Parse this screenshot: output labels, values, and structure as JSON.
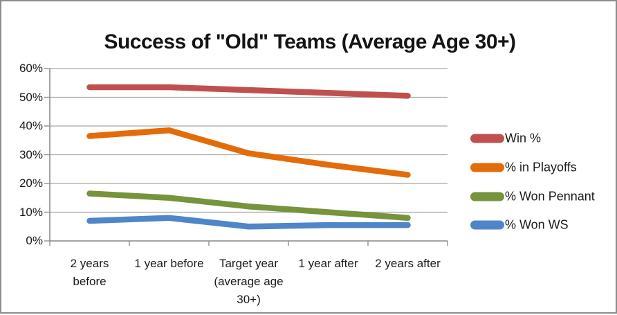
{
  "window": {
    "background_color": "#FFFFFF",
    "border_color": "#8C8C8C"
  },
  "chart_data": {
    "type": "line",
    "title": "Success of \"Old\" Teams (Average Age 30+)",
    "categories": [
      "2 years before",
      "1 year before",
      "Target year (average age 30+)",
      "1 year after",
      "2 years after"
    ],
    "category_label_lines": [
      [
        "2 years",
        "before"
      ],
      [
        "1 year before"
      ],
      [
        "Target year",
        "(average age",
        "30+)"
      ],
      [
        "1 year after"
      ],
      [
        "2 years after"
      ]
    ],
    "series": [
      {
        "name": "Win %",
        "color": "#C0504D",
        "values": [
          53.5,
          53.5,
          52.5,
          51.5,
          50.5
        ]
      },
      {
        "name": "% in Playoffs",
        "color": "#E36C09",
        "values": [
          36.5,
          38.5,
          30.5,
          26.5,
          23
        ]
      },
      {
        "name": "% Won Pennant",
        "color": "#77933C",
        "values": [
          16.5,
          15,
          12,
          10,
          8
        ]
      },
      {
        "name": "% Won WS",
        "color": "#4F86C8",
        "values": [
          7,
          8,
          5,
          5.5,
          5.5
        ]
      }
    ],
    "ylim": [
      0,
      60
    ],
    "ytick_step": 10,
    "ytick_labels": [
      "0%",
      "10%",
      "20%",
      "30%",
      "40%",
      "50%",
      "60%"
    ],
    "xlabel": "",
    "ylabel": "",
    "grid": "horizontal",
    "legend_position": "right",
    "legend_labels": [
      "Win %",
      "% in Playoffs",
      "% Won Pennant",
      "% Won WS"
    ],
    "axis_color": "#8E8E8E",
    "grid_color": "#A6A6A6",
    "line_width": 8.5
  }
}
